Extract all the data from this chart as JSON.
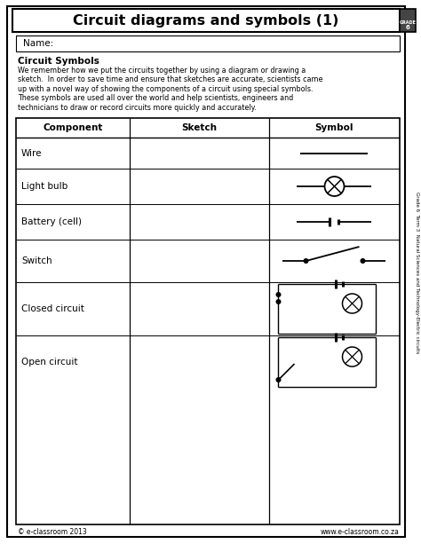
{
  "title": "Circuit diagrams and symbols (1)",
  "grade_label": "GRADE 6",
  "side_text": "Grade 6  Term 3  Natural Sciences and Technology-Electric circuits",
  "name_label": "Name:",
  "section_title": "Circuit Symbols",
  "body_line1": "We remember how we put the circuits together by using a diagram or drawing a",
  "body_line2": "sketch.  In order to save time and ensure that sketches are accurate, scientists came",
  "body_line3": "up with a novel way of showing the components of a circuit using special symbols.",
  "body_line4": "These symbols are used all over the world and help scientists, engineers and",
  "body_line5": "technicians to draw or record circuits more quickly and accurately.",
  "table_headers": [
    "Component",
    "Sketch",
    "Symbol"
  ],
  "table_rows": [
    "Wire",
    "Light bulb",
    "Battery (cell)",
    "Switch",
    "Closed circuit",
    "Open circuit"
  ],
  "footer_left": "© e-classroom 2013",
  "footer_right": "www.e-classroom.co.za",
  "bg_color": "#ffffff"
}
